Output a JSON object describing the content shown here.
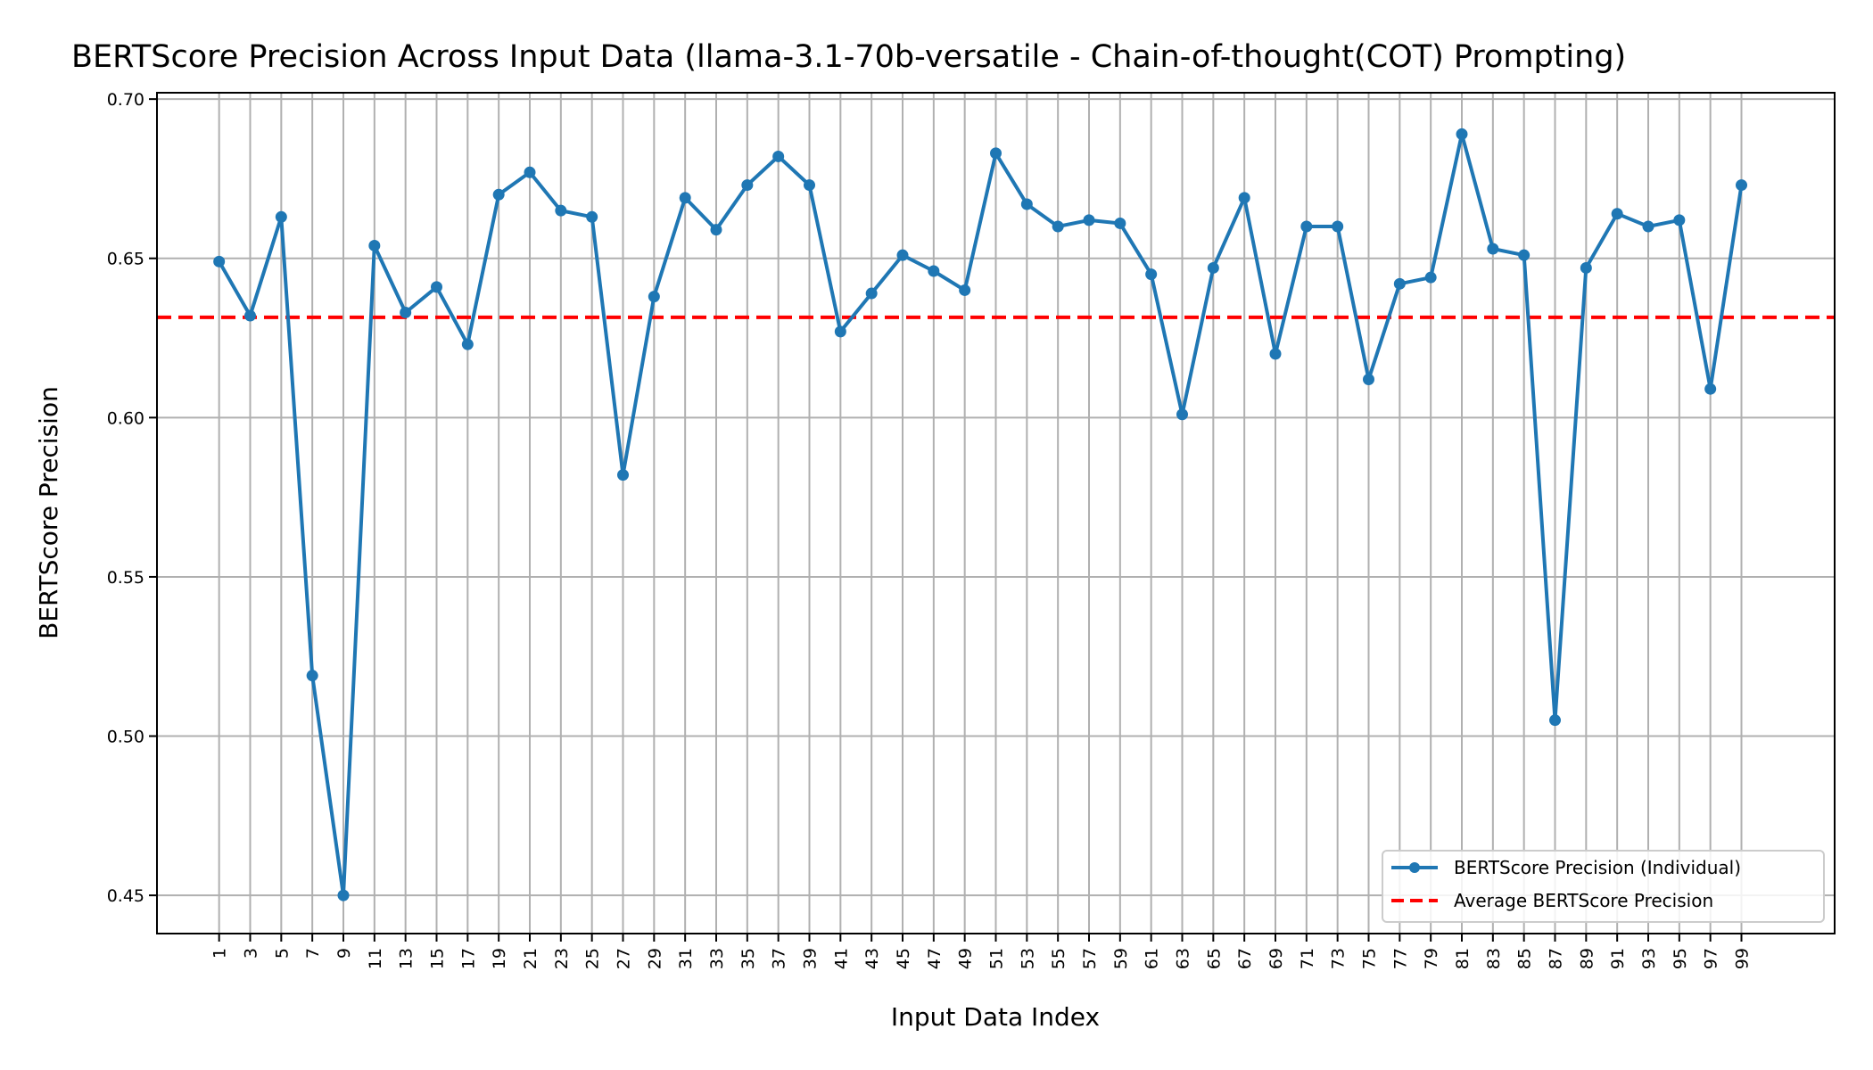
{
  "chart_data": {
    "type": "line",
    "title": "BERTScore Precision Across Input Data (llama-3.1-70b-versatile - Chain-of-thought(COT) Prompting)",
    "xlabel": "Input Data Index",
    "ylabel": "BERTScore Precision",
    "xlim": [
      -3.0,
      105.0
    ],
    "ylim": [
      0.438,
      0.702
    ],
    "yticks": [
      0.45,
      0.5,
      0.55,
      0.6,
      0.65,
      0.7
    ],
    "ytick_labels": [
      "0.45",
      "0.50",
      "0.55",
      "0.60",
      "0.65",
      "0.70"
    ],
    "x": [
      1,
      3,
      5,
      7,
      9,
      11,
      13,
      15,
      17,
      19,
      21,
      23,
      25,
      27,
      29,
      31,
      33,
      35,
      37,
      39,
      41,
      43,
      45,
      47,
      49,
      51,
      53,
      55,
      57,
      59,
      61,
      63,
      65,
      67,
      69,
      71,
      73,
      75,
      77,
      79,
      81,
      83,
      85,
      87,
      89,
      91,
      93,
      95,
      97,
      99
    ],
    "xtick_labels": [
      "1",
      "3",
      "5",
      "7",
      "9",
      "11",
      "13",
      "15",
      "17",
      "19",
      "21",
      "23",
      "25",
      "27",
      "29",
      "31",
      "33",
      "35",
      "37",
      "39",
      "41",
      "43",
      "45",
      "47",
      "49",
      "51",
      "53",
      "55",
      "57",
      "59",
      "61",
      "63",
      "65",
      "67",
      "69",
      "71",
      "73",
      "75",
      "77",
      "79",
      "81",
      "83",
      "85",
      "87",
      "89",
      "91",
      "93",
      "95",
      "97",
      "99"
    ],
    "series": [
      {
        "name": "BERTScore Precision (Individual)",
        "color": "#1f77b4",
        "style": "solid-with-markers",
        "values": [
          0.649,
          0.632,
          0.663,
          0.519,
          0.45,
          0.654,
          0.633,
          0.641,
          0.623,
          0.67,
          0.677,
          0.665,
          0.663,
          0.582,
          0.638,
          0.669,
          0.659,
          0.673,
          0.682,
          0.673,
          0.627,
          0.639,
          0.651,
          0.646,
          0.64,
          0.683,
          0.667,
          0.66,
          0.662,
          0.661,
          0.645,
          0.601,
          0.647,
          0.669,
          0.62,
          0.66,
          0.66,
          0.612,
          0.642,
          0.644,
          0.689,
          0.653,
          0.651,
          0.505,
          0.647,
          0.664,
          0.66,
          0.662,
          0.609,
          0.673
        ]
      },
      {
        "name": "Average BERTScore Precision",
        "color": "#ff0000",
        "style": "dashed",
        "value": 0.6315
      }
    ],
    "grid": true,
    "legend_position": "lower-right"
  }
}
